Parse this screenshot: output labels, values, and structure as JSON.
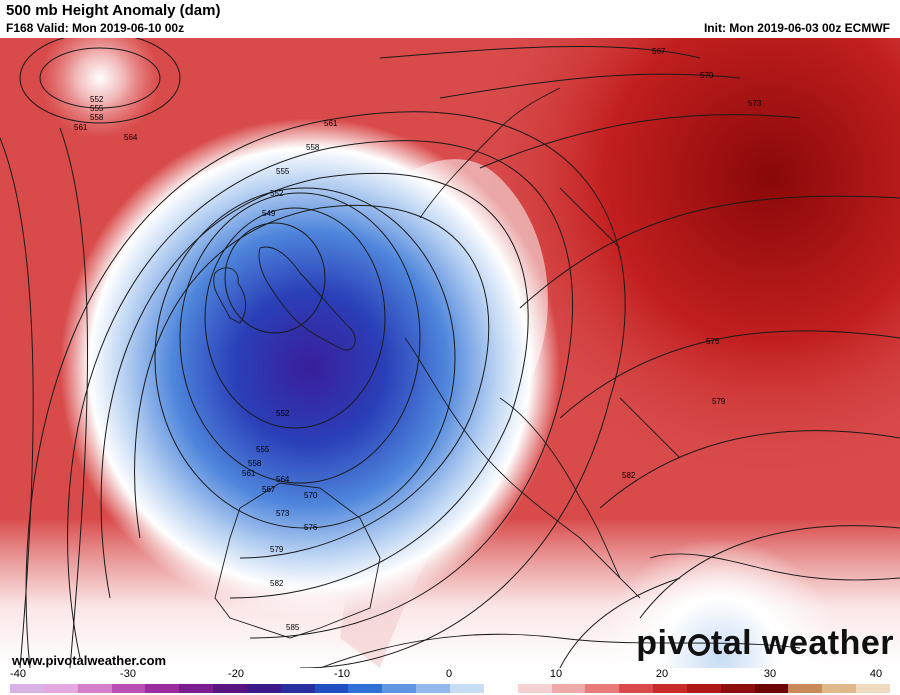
{
  "header": {
    "title": "500 mb Height Anomaly (dam)",
    "valid": "F168 Valid: Mon 2019-06-10 00z",
    "init": "Init: Mon 2019-06-03 00z ECMWF"
  },
  "footer": {
    "site": "www.pivotalweather.com",
    "logo_parts": [
      "piv",
      "tal weather"
    ]
  },
  "colorbar": {
    "ticks": [
      "-40",
      "-30",
      "-20",
      "-10",
      "0",
      "10",
      "20",
      "30",
      "40"
    ],
    "min": -40,
    "max": 40,
    "colors": [
      "#d9b3e8",
      "#e3a9e0",
      "#d37fc9",
      "#b84fb3",
      "#9c2d9f",
      "#7a1e8f",
      "#5a1680",
      "#3d1a8a",
      "#2a2fa0",
      "#1f4fc0",
      "#2f6fd6",
      "#5f95e2",
      "#93b8ec",
      "#c7dcf5",
      "#ffffff",
      "#f6d1d1",
      "#f0a9a9",
      "#e87a7a",
      "#db4a4a",
      "#c92a2a",
      "#b01818",
      "#8e0d0d",
      "#6d0505",
      "#c98a5a",
      "#e0b88a",
      "#efdcc0"
    ]
  },
  "map": {
    "contour_labels": [
      {
        "text": "552"
      },
      {
        "text": "555"
      },
      {
        "text": "558"
      },
      {
        "text": "561"
      },
      {
        "text": "564"
      },
      {
        "text": "561"
      },
      {
        "text": "558"
      },
      {
        "text": "555"
      },
      {
        "text": "552"
      },
      {
        "text": "549"
      },
      {
        "text": "552"
      },
      {
        "text": "555"
      },
      {
        "text": "558"
      },
      {
        "text": "561"
      },
      {
        "text": "564"
      },
      {
        "text": "567"
      },
      {
        "text": "570"
      },
      {
        "text": "573"
      },
      {
        "text": "576"
      },
      {
        "text": "579"
      },
      {
        "text": "582"
      },
      {
        "text": "585"
      },
      {
        "text": "567"
      },
      {
        "text": "570"
      },
      {
        "text": "573"
      },
      {
        "text": "576"
      },
      {
        "text": "579"
      },
      {
        "text": "582"
      }
    ]
  }
}
